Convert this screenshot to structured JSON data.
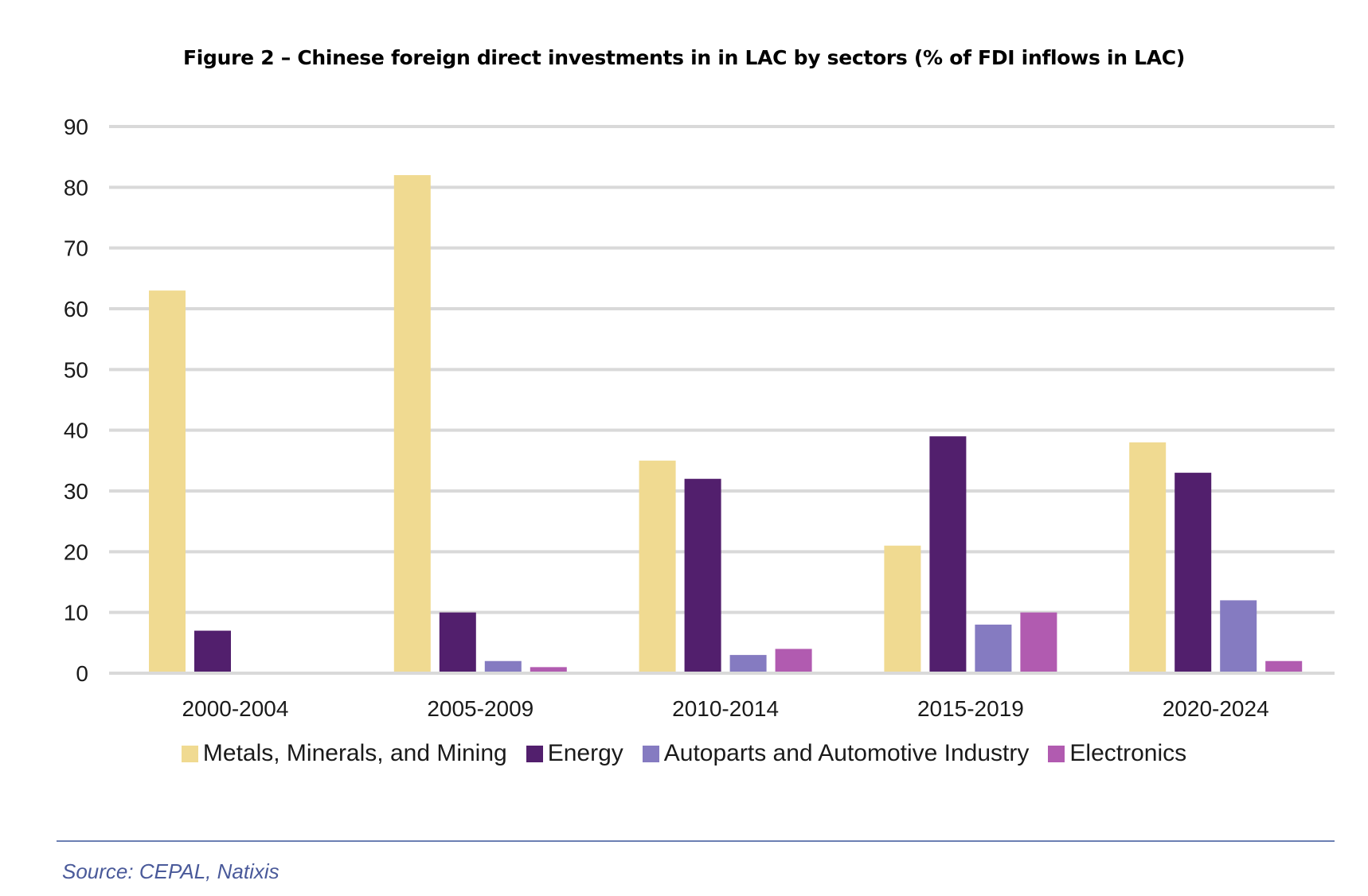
{
  "chart_data": {
    "type": "bar",
    "title": "Figure 2 – Chinese foreign direct investments in in LAC by sectors (% of FDI inflows in LAC)",
    "xlabel": "",
    "ylabel": "",
    "ylim": [
      0,
      90
    ],
    "yticks": [
      0,
      10,
      20,
      30,
      40,
      50,
      60,
      70,
      80,
      90
    ],
    "grid": true,
    "legend_position": "bottom",
    "categories": [
      "2000-2004",
      "2005-2009",
      "2010-2014",
      "2015-2019",
      "2020-2024"
    ],
    "series": [
      {
        "name": "Metals, Minerals, and Mining",
        "color": "#f0da91",
        "values": [
          63,
          82,
          35,
          21,
          38
        ]
      },
      {
        "name": "Energy",
        "color": "#521f6d",
        "values": [
          7,
          10,
          32,
          39,
          33
        ]
      },
      {
        "name": "Autoparts and Automotive Industry",
        "color": "#857bc1",
        "values": [
          0,
          2,
          3,
          8,
          12
        ]
      },
      {
        "name": "Electronics",
        "color": "#b15bb0",
        "values": [
          0,
          1,
          4,
          10,
          2
        ]
      }
    ],
    "source": "Source: CEPAL, Natixis"
  }
}
